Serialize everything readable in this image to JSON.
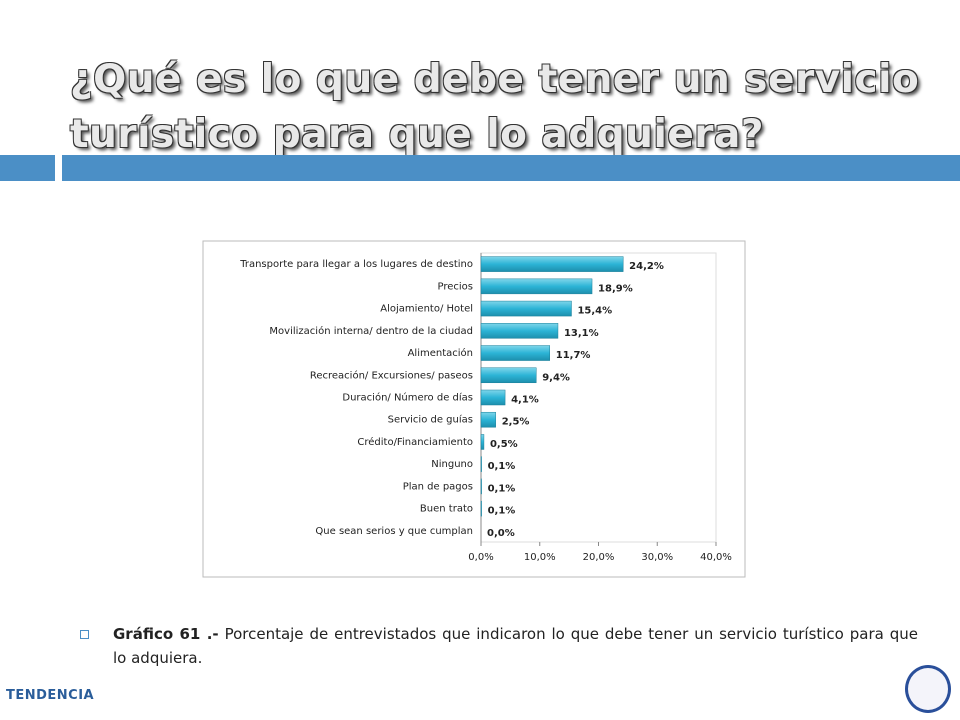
{
  "title": "¿Qué es lo que debe tener un servicio turístico para que lo adquiera?",
  "chart_data": {
    "type": "barh",
    "categories": [
      "Transporte para llegar a los lugares de destino",
      "Precios",
      "Alojamiento/ Hotel",
      "Movilización interna/ dentro de la ciudad",
      "Alimentación",
      "Recreación/ Excursiones/ paseos",
      "Duración/ Número de días",
      "Servicio de guías",
      "Crédito/Financiamiento",
      "Ninguno",
      "Plan de pagos",
      "Buen trato",
      "Que sean serios y que cumplan"
    ],
    "values": [
      24.2,
      18.9,
      15.4,
      13.1,
      11.7,
      9.4,
      4.1,
      2.5,
      0.5,
      0.1,
      0.1,
      0.1,
      0.0
    ],
    "value_labels": [
      "24,2%",
      "18,9%",
      "15,4%",
      "13,1%",
      "11,7%",
      "9,4%",
      "4,1%",
      "2,5%",
      "0,5%",
      "0,1%",
      "0,1%",
      "0,1%",
      "0,0%"
    ],
    "color": "#2cb4d6",
    "xlim": [
      0,
      40
    ],
    "xticks": [
      {
        "value": 0,
        "label": "0,0%"
      },
      {
        "value": 10,
        "label": "10,0%"
      },
      {
        "value": 20,
        "label": "20,0%"
      },
      {
        "value": 30,
        "label": "30,0%"
      },
      {
        "value": 40,
        "label": "40,0%"
      }
    ]
  },
  "caption": {
    "label": "Gráfico 61 .-",
    "text": "Porcentaje de entrevistados que indicaron lo que debe tener un servicio turístico para que lo adquiera."
  },
  "logo": "TENDENCIA"
}
